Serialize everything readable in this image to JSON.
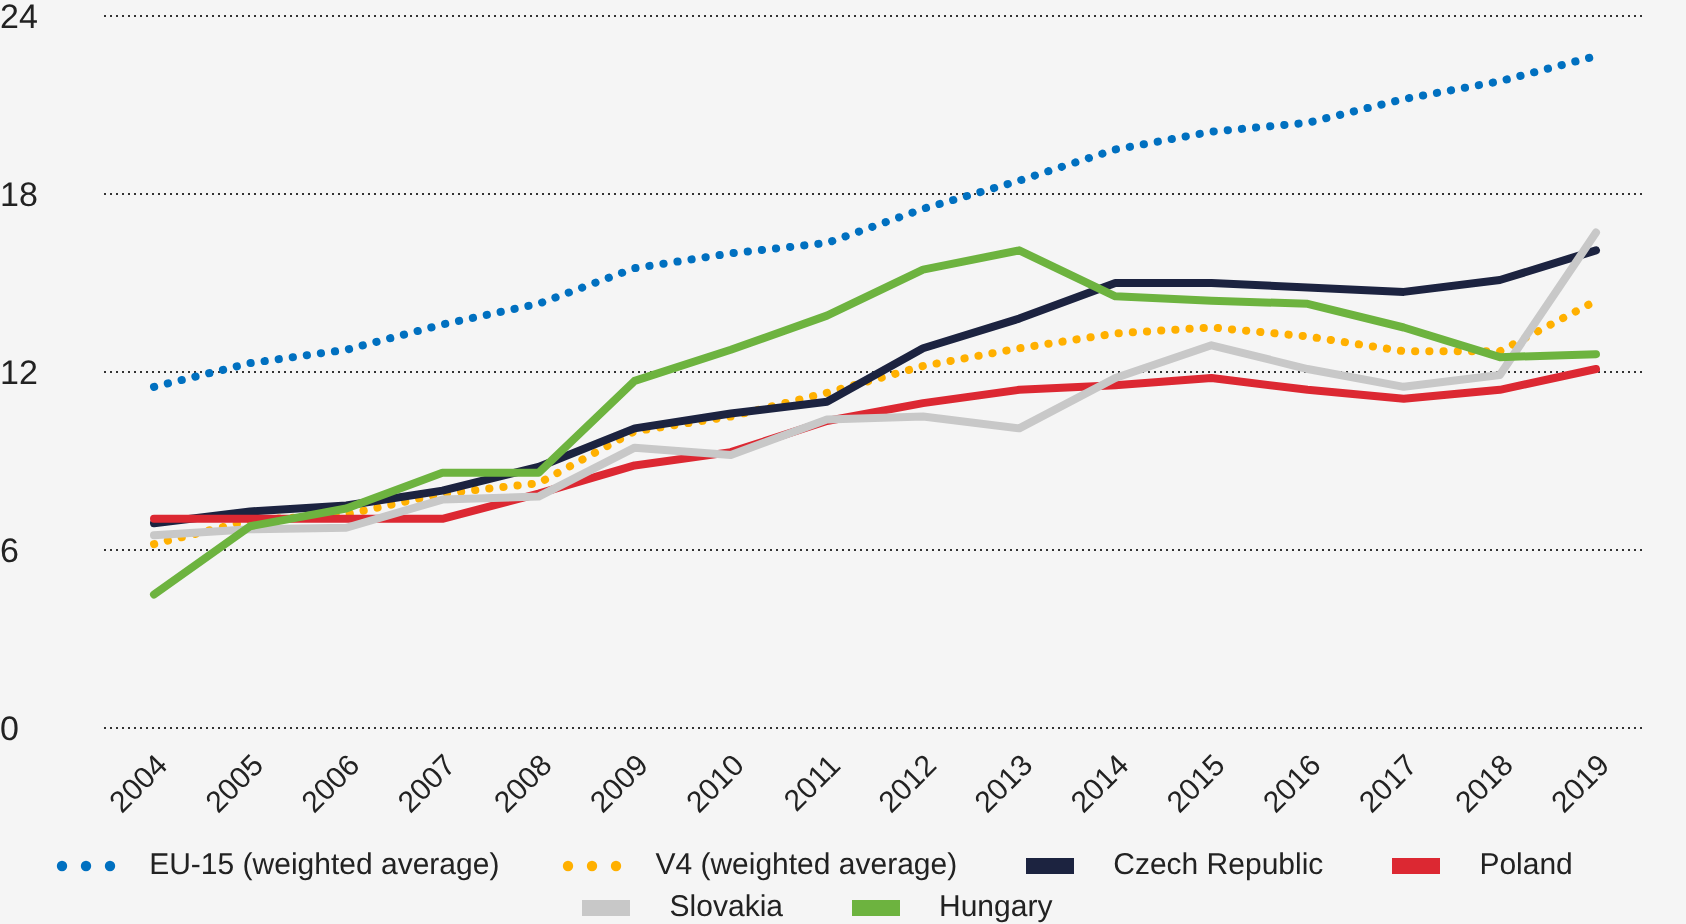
{
  "chart_data": {
    "type": "line",
    "categories": [
      "2004",
      "2005",
      "2006",
      "2007",
      "2008",
      "2009",
      "2010",
      "2011",
      "2012",
      "2013",
      "2014",
      "2015",
      "2016",
      "2017",
      "2018",
      "2019"
    ],
    "ylim": [
      0,
      24
    ],
    "yticks": [
      0,
      6,
      12,
      18,
      24
    ],
    "grid": "y",
    "legend": "bottom",
    "marker": "none",
    "series": [
      {
        "name": "EU-15 (weighted average)",
        "color": "#0070c0",
        "line_style": "dotted",
        "values": [
          11.5,
          12.3,
          12.75,
          13.6,
          14.3,
          15.5,
          16,
          16.35,
          17.5,
          18.45,
          19.5,
          20.1,
          20.4,
          21.2,
          21.8,
          22.65
        ]
      },
      {
        "name": "V4 (weighted average)",
        "color": "#ffb000",
        "line_style": "dotted",
        "values": [
          6.2,
          7,
          7.2,
          7.9,
          8.25,
          10,
          10.5,
          11.3,
          12.2,
          12.8,
          13.3,
          13.5,
          13.2,
          12.7,
          12.7,
          14.4
        ]
      },
      {
        "name": "Czech Republic",
        "color": "#1c2340",
        "line_style": "solid",
        "values": [
          6.9,
          7.3,
          7.5,
          8,
          8.8,
          10.1,
          10.6,
          11,
          12.8,
          13.8,
          15,
          15,
          14.85,
          14.7,
          15.1,
          16.1
        ]
      },
      {
        "name": "Poland",
        "color": "#dc2832",
        "line_style": "solid",
        "values": [
          7.05,
          7.05,
          7.05,
          7.05,
          7.9,
          8.85,
          9.3,
          10.35,
          10.95,
          11.4,
          11.55,
          11.8,
          11.4,
          11.1,
          11.4,
          12.1
        ]
      },
      {
        "name": "Slovakia",
        "color": "#c8c8c8",
        "line_style": "solid",
        "values": [
          6.5,
          6.7,
          6.75,
          7.7,
          7.8,
          9.45,
          9.2,
          10.4,
          10.5,
          10.1,
          11.8,
          12.9,
          12.1,
          11.5,
          11.9,
          16.7
        ]
      },
      {
        "name": "Hungary",
        "color": "#6db33f",
        "line_style": "solid",
        "values": [
          4.5,
          6.8,
          7.4,
          8.6,
          8.6,
          11.7,
          12.75,
          13.9,
          15.45,
          16.1,
          14.55,
          14.4,
          14.3,
          13.5,
          12.5,
          12.6
        ]
      }
    ]
  }
}
